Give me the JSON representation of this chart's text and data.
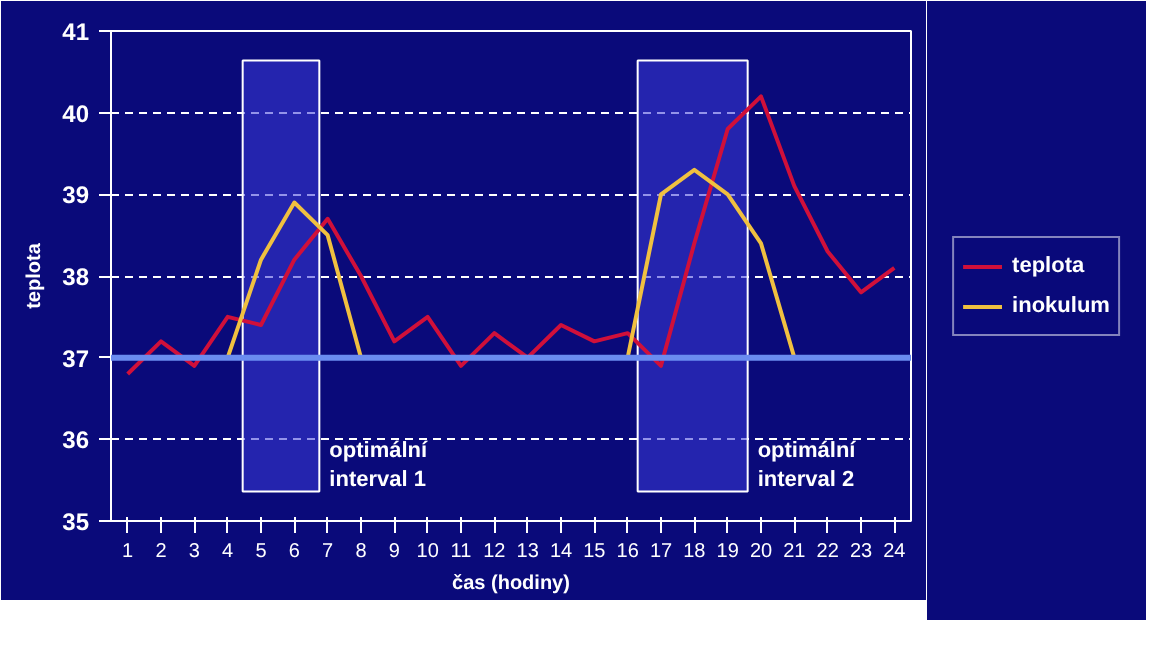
{
  "chart_data": {
    "type": "line",
    "xlabel": "čas (hodiny)",
    "ylabel": "teplota",
    "x": [
      1,
      2,
      3,
      4,
      5,
      6,
      7,
      8,
      9,
      10,
      11,
      12,
      13,
      14,
      15,
      16,
      17,
      18,
      19,
      20,
      21,
      22,
      23,
      24
    ],
    "xlim": [
      0.5,
      24.5
    ],
    "xticks": [
      1,
      2,
      3,
      4,
      5,
      6,
      7,
      8,
      9,
      10,
      11,
      12,
      13,
      14,
      15,
      16,
      17,
      18,
      19,
      20,
      21,
      22,
      23,
      24
    ],
    "series": [
      {
        "name": "teplota",
        "color": "#d0103a",
        "values": [
          36.8,
          37.2,
          36.9,
          37.5,
          37.4,
          38.2,
          38.7,
          38.0,
          37.2,
          37.5,
          36.9,
          37.3,
          37.0,
          37.4,
          37.2,
          37.3,
          36.9,
          38.4,
          39.8,
          40.2,
          39.1,
          38.3,
          37.8,
          38.1
        ]
      },
      {
        "name": "inokulum",
        "color": "#f0c040",
        "values": [
          null,
          null,
          null,
          37.0,
          38.2,
          38.9,
          38.5,
          37.0,
          null,
          null,
          null,
          null,
          null,
          null,
          null,
          37.0,
          39.0,
          39.3,
          39.0,
          38.4,
          37.0,
          null,
          null,
          null
        ]
      }
    ],
    "ylim": [
      35,
      41
    ],
    "yticks": [
      35,
      36,
      37,
      38,
      39,
      40,
      41
    ],
    "grid": "y",
    "legend": "right",
    "ref_lines": [
      {
        "axis": "y",
        "value": 37,
        "color": "#6a8cf0"
      }
    ],
    "bands": [
      {
        "axis": "x",
        "from": 4.45,
        "to": 6.75,
        "label": "optimální\ninterval 1",
        "color": "#3a3ad8"
      },
      {
        "axis": "x",
        "from": 16.3,
        "to": 19.6,
        "label": "optimální\ninterval 2",
        "color": "#3a3ad8"
      }
    ]
  }
}
